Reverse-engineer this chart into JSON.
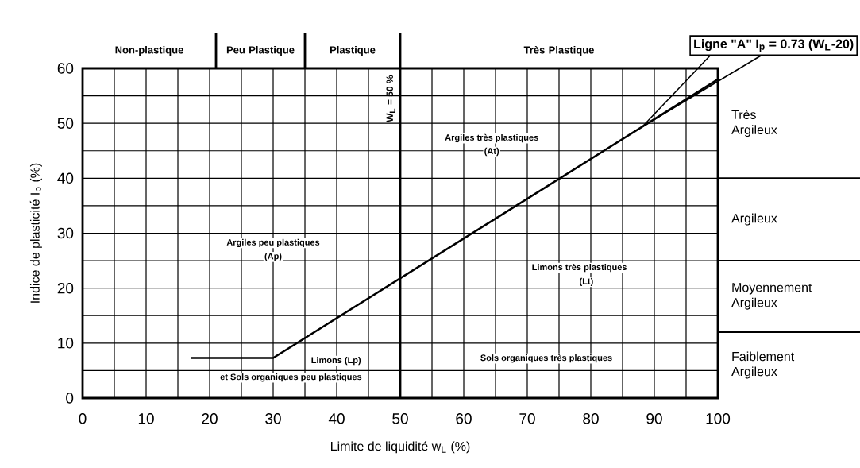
{
  "chart_data": {
    "type": "line",
    "xlabel": "Limite de liquidité w$_{L}$  (%)",
    "ylabel": "Indice de plasticité I$_{p}$  (%)",
    "series": [
      {
        "color": "#000000",
        "x": [
          17,
          30,
          100
        ],
        "values": [
          7.3,
          7.3,
          58
        ]
      }
    ],
    "xlim": [
      0,
      100
    ],
    "ylim": [
      0,
      60
    ],
    "xticks": [
      0,
      {
        "value": 5,
        "label": null
      },
      10,
      {
        "value": 15,
        "label": null
      },
      20,
      {
        "value": 25,
        "label": null
      },
      30,
      {
        "value": 35,
        "label": null
      },
      40,
      {
        "value": 45,
        "label": null
      },
      50,
      {
        "value": 55,
        "label": null
      },
      60,
      {
        "value": 65,
        "label": null
      },
      70,
      {
        "value": 75,
        "label": null
      },
      80,
      {
        "value": 85,
        "label": null
      },
      90,
      {
        "value": 95,
        "label": null
      },
      100
    ],
    "yticks": [
      0,
      {
        "value": 5,
        "label": null
      },
      10,
      {
        "value": 15,
        "label": null
      },
      20,
      {
        "value": 25,
        "label": null
      },
      30,
      {
        "value": 35,
        "label": null
      },
      40,
      {
        "value": 45,
        "label": null
      },
      50,
      {
        "value": 55,
        "label": null
      },
      60
    ],
    "grid": true,
    "ref_lines": [
      {
        "axis": "x",
        "value": 50,
        "label": "W$_{L}$ = 50 %"
      }
    ],
    "annotations": [
      "Non-plastique",
      "Peu Plastique",
      "Plastique",
      "Très  Plastique",
      "Très Argileux",
      "Argileux",
      "Moyennement Argileux",
      "Faiblement Argileux",
      "Ligne \"A\"    I$_{p}$ = 0.73 (W$_{L}$-20)",
      "Argiles très plastiques",
      "(At)",
      "Argiles peu plastiques",
      "(Ap)",
      "Limons très plastiques",
      "(Lt)",
      "Limons (Lp)",
      "et Sols organiques peu plastiques",
      "Sols organiques très plastiques"
    ]
  }
}
